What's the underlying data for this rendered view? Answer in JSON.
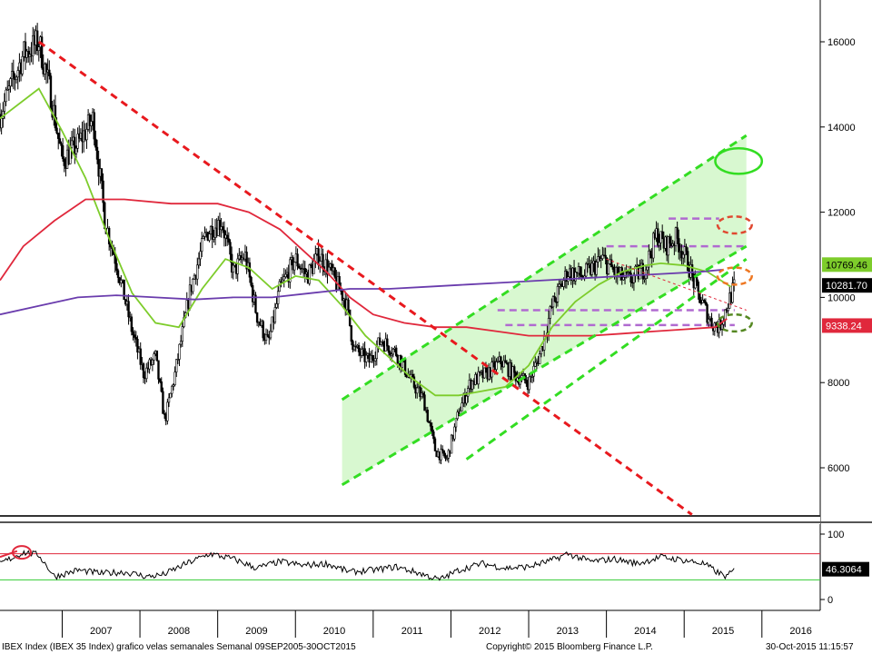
{
  "chart_data": {
    "type": "candlestick",
    "instrument": "IBEX Index (IBEX 35 Index) grafico velas semanales  Semanal 09SEP2005-30OCT2015",
    "copyright": "Copyright© 2015 Bloomberg Finance L.P.",
    "timestamp": "30-Oct-2015 11:15:57",
    "x_tick_labels": [
      "2007",
      "2008",
      "2009",
      "2010",
      "2011",
      "2012",
      "2013",
      "2014",
      "2015",
      "2016"
    ],
    "main_panel": {
      "ylim": [
        5000,
        17000
      ],
      "y_ticks": [
        6000,
        8000,
        10000,
        12000,
        14000,
        16000
      ],
      "y_tick_labels": [
        "6000",
        "8000",
        "10000",
        "12000",
        "14000",
        "16000"
      ],
      "price_series": {
        "name": "IBEX weekly",
        "color": "#000000",
        "anchors": [
          [
            2006.0,
            14300
          ],
          [
            2006.3,
            15700
          ],
          [
            2006.5,
            16000
          ],
          [
            2006.65,
            14800
          ],
          [
            2006.8,
            13200
          ],
          [
            2007.0,
            13600
          ],
          [
            2007.2,
            14200
          ],
          [
            2007.35,
            11800
          ],
          [
            2007.5,
            10800
          ],
          [
            2007.7,
            9200
          ],
          [
            2007.85,
            8200
          ],
          [
            2008.0,
            8600
          ],
          [
            2008.12,
            7100
          ],
          [
            2008.25,
            8200
          ],
          [
            2008.45,
            10200
          ],
          [
            2008.65,
            11500
          ],
          [
            2008.85,
            11800
          ],
          [
            2009.0,
            10600
          ],
          [
            2009.15,
            11000
          ],
          [
            2009.3,
            9600
          ],
          [
            2009.45,
            8900
          ],
          [
            2009.6,
            10200
          ],
          [
            2009.8,
            10900
          ],
          [
            2009.95,
            10500
          ],
          [
            2010.1,
            11000
          ],
          [
            2010.25,
            10600
          ],
          [
            2010.45,
            9900
          ],
          [
            2010.55,
            8800
          ],
          [
            2010.75,
            8500
          ],
          [
            2010.9,
            9000
          ],
          [
            2011.1,
            8700
          ],
          [
            2011.3,
            8000
          ],
          [
            2011.45,
            7600
          ],
          [
            2011.6,
            6400
          ],
          [
            2011.75,
            6200
          ],
          [
            2011.9,
            7300
          ],
          [
            2012.05,
            8000
          ],
          [
            2012.25,
            8200
          ],
          [
            2012.45,
            8500
          ],
          [
            2012.6,
            8200
          ],
          [
            2012.8,
            8000
          ],
          [
            2012.95,
            8700
          ],
          [
            2013.1,
            9800
          ],
          [
            2013.3,
            10600
          ],
          [
            2013.5,
            10500
          ],
          [
            2013.75,
            10900
          ],
          [
            2013.95,
            10500
          ],
          [
            2014.1,
            10400
          ],
          [
            2014.3,
            10700
          ],
          [
            2014.45,
            11500
          ],
          [
            2014.55,
            11200
          ],
          [
            2014.7,
            11400
          ],
          [
            2014.85,
            10800
          ],
          [
            2014.95,
            10200
          ],
          [
            2015.05,
            9800
          ],
          [
            2015.15,
            9400
          ],
          [
            2015.25,
            9300
          ],
          [
            2015.35,
            9800
          ],
          [
            2015.45,
            10280
          ]
        ]
      },
      "moving_averages": [
        {
          "color": "#7dcc2b",
          "points": [
            [
              2006.0,
              14200
            ],
            [
              2006.5,
              14900
            ],
            [
              2006.8,
              13900
            ],
            [
              2007.1,
              12800
            ],
            [
              2007.4,
              11400
            ],
            [
              2007.7,
              10100
            ],
            [
              2008.0,
              9400
            ],
            [
              2008.3,
              9300
            ],
            [
              2008.6,
              10200
            ],
            [
              2008.9,
              10900
            ],
            [
              2009.2,
              10700
            ],
            [
              2009.5,
              10200
            ],
            [
              2009.8,
              10500
            ],
            [
              2010.1,
              10400
            ],
            [
              2010.4,
              9800
            ],
            [
              2010.7,
              9100
            ],
            [
              2011.0,
              8600
            ],
            [
              2011.3,
              8100
            ],
            [
              2011.6,
              7700
            ],
            [
              2011.9,
              7700
            ],
            [
              2012.2,
              7800
            ],
            [
              2012.5,
              7900
            ],
            [
              2012.8,
              8400
            ],
            [
              2013.1,
              9300
            ],
            [
              2013.4,
              9900
            ],
            [
              2013.7,
              10300
            ],
            [
              2014.0,
              10600
            ],
            [
              2014.3,
              10750
            ],
            [
              2014.5,
              10800
            ],
            [
              2014.8,
              10750
            ],
            [
              2015.1,
              10600
            ],
            [
              2015.4,
              10250
            ]
          ]
        },
        {
          "color": "#e0283c",
          "points": [
            [
              2006.0,
              10400
            ],
            [
              2006.3,
              11200
            ],
            [
              2006.7,
              11800
            ],
            [
              2007.1,
              12300
            ],
            [
              2007.6,
              12300
            ],
            [
              2008.2,
              12200
            ],
            [
              2008.8,
              12200
            ],
            [
              2009.2,
              12000
            ],
            [
              2009.6,
              11600
            ],
            [
              2009.9,
              11100
            ],
            [
              2010.2,
              10600
            ],
            [
              2010.5,
              10000
            ],
            [
              2010.8,
              9600
            ],
            [
              2011.2,
              9400
            ],
            [
              2011.6,
              9300
            ],
            [
              2012.0,
              9300
            ],
            [
              2012.4,
              9200
            ],
            [
              2012.8,
              9100
            ],
            [
              2013.2,
              9100
            ],
            [
              2013.6,
              9100
            ],
            [
              2014.0,
              9150
            ],
            [
              2014.4,
              9200
            ],
            [
              2014.8,
              9250
            ],
            [
              2015.2,
              9300
            ],
            [
              2015.35,
              9500
            ]
          ]
        },
        {
          "color": "#6a3cad",
          "points": [
            [
              2006.0,
              9600
            ],
            [
              2006.5,
              9800
            ],
            [
              2007.0,
              10000
            ],
            [
              2007.5,
              10050
            ],
            [
              2008.0,
              10000
            ],
            [
              2008.5,
              9950
            ],
            [
              2009.0,
              10000
            ],
            [
              2009.5,
              10000
            ],
            [
              2010.0,
              10100
            ],
            [
              2010.5,
              10200
            ],
            [
              2011.0,
              10200
            ],
            [
              2011.5,
              10250
            ],
            [
              2012.0,
              10300
            ],
            [
              2012.5,
              10350
            ],
            [
              2013.0,
              10400
            ],
            [
              2013.5,
              10450
            ],
            [
              2014.0,
              10500
            ],
            [
              2014.5,
              10550
            ],
            [
              2015.0,
              10600
            ],
            [
              2015.3,
              10650
            ]
          ]
        }
      ],
      "channel": {
        "fill_color": "#d8f8d0",
        "line_color": "#33dd22",
        "lower": [
          [
            2010.4,
            5600
          ],
          [
            2015.6,
            11200
          ]
        ],
        "upper": [
          [
            2010.4,
            7600
          ],
          [
            2015.6,
            13800
          ]
        ],
        "mid": [
          [
            2012.0,
            6200
          ],
          [
            2015.6,
            10900
          ]
        ]
      },
      "trend_lines": [
        {
          "color": "#e8191e",
          "style": "dashed",
          "points": [
            [
              2006.5,
              16000
            ],
            [
              2014.9,
              4900
            ]
          ]
        },
        {
          "color": "#e0283c",
          "style": "dotted",
          "points": [
            [
              2013.8,
              10900
            ],
            [
              2015.6,
              9700
            ]
          ]
        }
      ],
      "horizontal_levels": [
        {
          "value": 11850,
          "x0": 2014.6,
          "x1": 2015.25,
          "color": "#b06ad0"
        },
        {
          "value": 11200,
          "x0": 2013.8,
          "x1": 2015.6,
          "color": "#b06ad0"
        },
        {
          "value": 9700,
          "x0": 2012.4,
          "x1": 2015.45,
          "color": "#b06ad0"
        },
        {
          "value": 9350,
          "x0": 2012.5,
          "x1": 2015.45,
          "color": "#b06ad0"
        }
      ],
      "highlight_ellipses": [
        {
          "x": 2015.5,
          "y": 13200,
          "rx": 0.3,
          "ry": 300,
          "color": "#33dd22",
          "style": "solid"
        },
        {
          "x": 2015.45,
          "y": 11700,
          "rx": 0.22,
          "ry": 200,
          "color": "#e04830",
          "style": "dashed"
        },
        {
          "x": 2015.45,
          "y": 10500,
          "rx": 0.22,
          "ry": 200,
          "color": "#ee7722",
          "style": "dashed"
        },
        {
          "x": 2015.45,
          "y": 9400,
          "rx": 0.22,
          "ry": 200,
          "color": "#558822",
          "style": "dashed"
        }
      ],
      "value_tags": [
        {
          "value": 10769.46,
          "label": "10769.46",
          "bg": "#7dcc2b",
          "fg": "#000000"
        },
        {
          "value": 10281.7,
          "label": "10281.70",
          "bg": "#000000",
          "fg": "#ffffff"
        },
        {
          "value": 9338.24,
          "label": "9338.24",
          "bg": "#e0283c",
          "fg": "#ffffff"
        }
      ]
    },
    "rsi_panel": {
      "ylim": [
        -10,
        110
      ],
      "y_ticks": [
        0,
        100
      ],
      "y_tick_labels": [
        "0",
        "100"
      ],
      "upper_level": 70,
      "lower_level": 30,
      "upper_color": "#e0283c",
      "lower_color": "#33cc33",
      "last_value_label": "46.3064",
      "last_value": 46.3064,
      "anchors": [
        [
          2006.0,
          55
        ],
        [
          2006.3,
          72
        ],
        [
          2006.5,
          68
        ],
        [
          2006.7,
          35
        ],
        [
          2007.0,
          45
        ],
        [
          2007.3,
          40
        ],
        [
          2007.6,
          42
        ],
        [
          2007.9,
          35
        ],
        [
          2008.1,
          38
        ],
        [
          2008.4,
          55
        ],
        [
          2008.7,
          70
        ],
        [
          2009.0,
          62
        ],
        [
          2009.3,
          48
        ],
        [
          2009.6,
          58
        ],
        [
          2009.9,
          52
        ],
        [
          2010.2,
          55
        ],
        [
          2010.5,
          42
        ],
        [
          2010.8,
          45
        ],
        [
          2011.1,
          50
        ],
        [
          2011.4,
          40
        ],
        [
          2011.65,
          30
        ],
        [
          2011.9,
          45
        ],
        [
          2012.2,
          55
        ],
        [
          2012.5,
          48
        ],
        [
          2012.8,
          50
        ],
        [
          2013.1,
          60
        ],
        [
          2013.3,
          70
        ],
        [
          2013.6,
          58
        ],
        [
          2013.9,
          62
        ],
        [
          2014.2,
          55
        ],
        [
          2014.5,
          65
        ],
        [
          2014.8,
          60
        ],
        [
          2015.05,
          55
        ],
        [
          2015.25,
          40
        ],
        [
          2015.35,
          35
        ],
        [
          2015.45,
          46
        ]
      ]
    }
  }
}
